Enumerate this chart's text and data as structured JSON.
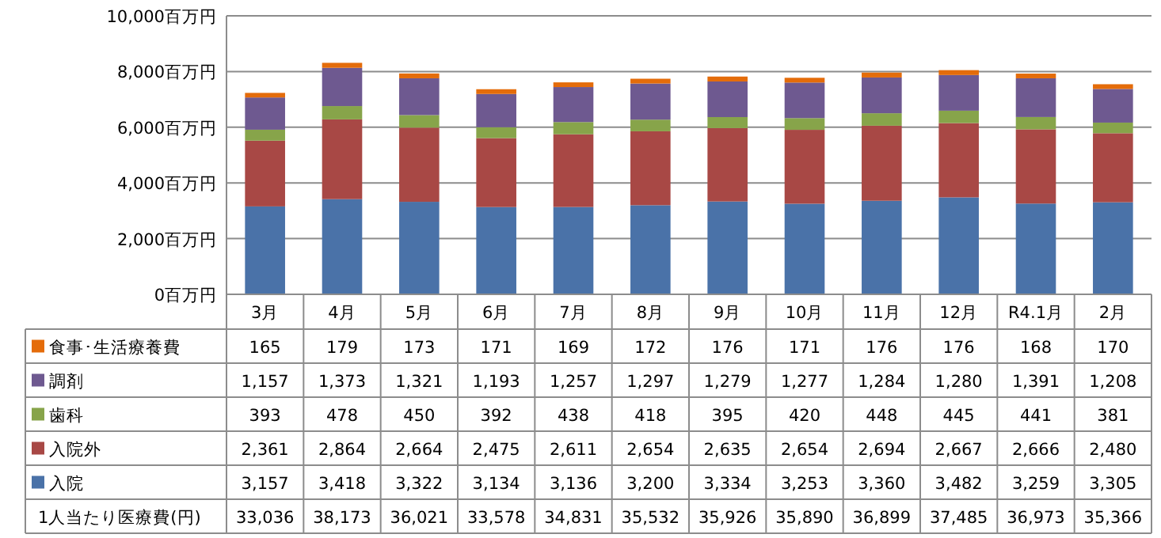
{
  "chart_data": {
    "type": "bar",
    "stacked": true,
    "grid": "y",
    "legend": "bottom",
    "categories": [
      "3月",
      "4月",
      "5月",
      "6月",
      "7月",
      "8月",
      "9月",
      "10月",
      "11月",
      "12月",
      "R4.1月",
      "2月"
    ],
    "series": [
      {
        "name": "入院",
        "color": "#4a72a8",
        "values": [
          3157,
          3418,
          3322,
          3134,
          3136,
          3200,
          3334,
          3253,
          3360,
          3482,
          3259,
          3305
        ],
        "value_labels": [
          "3,157",
          "3,418",
          "3,322",
          "3,134",
          "3,136",
          "3,200",
          "3,334",
          "3,253",
          "3,360",
          "3,482",
          "3,259",
          "3,305"
        ]
      },
      {
        "name": "入院外",
        "color": "#a84845",
        "values": [
          2361,
          2864,
          2664,
          2475,
          2611,
          2654,
          2635,
          2654,
          2694,
          2667,
          2666,
          2480
        ],
        "value_labels": [
          "2,361",
          "2,864",
          "2,664",
          "2,475",
          "2,611",
          "2,654",
          "2,635",
          "2,654",
          "2,694",
          "2,667",
          "2,666",
          "2,480"
        ]
      },
      {
        "name": "歯科",
        "color": "#87a44a",
        "values": [
          393,
          478,
          450,
          392,
          438,
          418,
          395,
          420,
          448,
          445,
          441,
          381
        ],
        "value_labels": [
          "393",
          "478",
          "450",
          "392",
          "438",
          "418",
          "395",
          "420",
          "448",
          "445",
          "441",
          "381"
        ]
      },
      {
        "name": "調剤",
        "color": "#6e5990",
        "values": [
          1157,
          1373,
          1321,
          1193,
          1257,
          1297,
          1279,
          1277,
          1284,
          1280,
          1391,
          1208
        ],
        "value_labels": [
          "1,157",
          "1,373",
          "1,321",
          "1,193",
          "1,257",
          "1,297",
          "1,279",
          "1,277",
          "1,284",
          "1,280",
          "1,391",
          "1,208"
        ]
      },
      {
        "name": "食事･生活療養費",
        "color": "#e46c0a",
        "values": [
          165,
          179,
          173,
          171,
          169,
          172,
          176,
          171,
          176,
          176,
          168,
          170
        ],
        "value_labels": [
          "165",
          "179",
          "173",
          "171",
          "169",
          "172",
          "176",
          "171",
          "176",
          "176",
          "168",
          "170"
        ]
      }
    ],
    "ylim": [
      0,
      10000
    ],
    "yticks": [
      {
        "value": 0,
        "label": "0百万円"
      },
      {
        "value": 2000,
        "label": "2,000百万円"
      },
      {
        "value": 4000,
        "label": "4,000百万円"
      },
      {
        "value": 6000,
        "label": "6,000百万円"
      },
      {
        "value": 8000,
        "label": "8,000百万円"
      },
      {
        "value": 10000,
        "label": "10,000百万円"
      }
    ],
    "annotations": [
      "1人当たり医療費(円)",
      "33,036",
      "38,173",
      "36,021",
      "33,578",
      "34,831",
      "35,532",
      "35,926",
      "35,890",
      "36,899",
      "37,485",
      "36,973",
      "35,366"
    ]
  }
}
